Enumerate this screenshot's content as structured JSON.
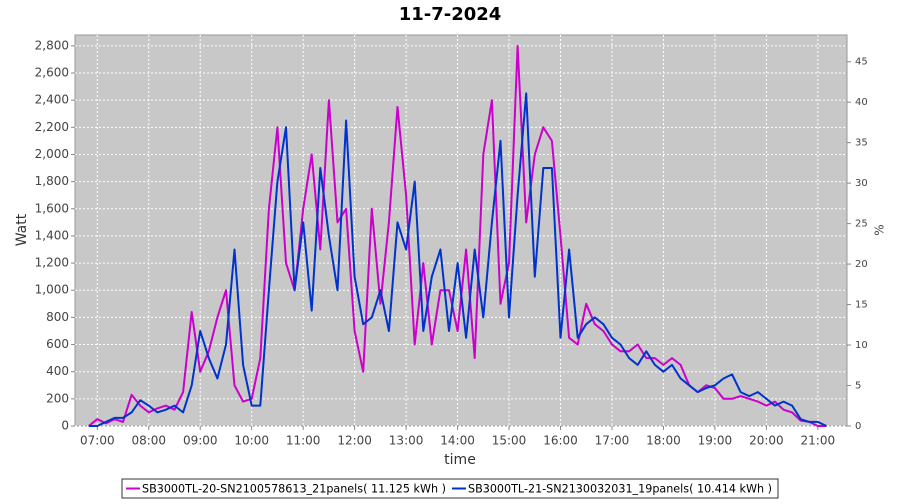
{
  "chart_data": {
    "type": "line",
    "title": "11-7-2024",
    "xlabel": "time",
    "ylabel": "Watt",
    "y2label": "%",
    "x": [
      410,
      420,
      430,
      440,
      450,
      460,
      470,
      480,
      490,
      500,
      510,
      520,
      530,
      540,
      550,
      560,
      570,
      580,
      590,
      600,
      610,
      620,
      630,
      640,
      650,
      660,
      670,
      680,
      690,
      700,
      710,
      720,
      730,
      740,
      750,
      760,
      770,
      780,
      790,
      800,
      810,
      820,
      830,
      840,
      850,
      860,
      870,
      880,
      890,
      900,
      910,
      920,
      930,
      940,
      950,
      960,
      970,
      980,
      990,
      1000,
      1010,
      1020,
      1030,
      1040,
      1050,
      1060,
      1070,
      1080,
      1090,
      1100,
      1110,
      1120,
      1130,
      1140,
      1150,
      1160,
      1170,
      1180,
      1190,
      1200,
      1210,
      1220,
      1230,
      1240,
      1250,
      1260,
      1270
    ],
    "series": [
      {
        "name": "SB3000TL-20-SN2100578613_21panels( 11.125 kWh )",
        "color": "#cc00cc",
        "values": [
          0,
          50,
          20,
          50,
          30,
          230,
          150,
          100,
          130,
          150,
          120,
          250,
          840,
          400,
          550,
          800,
          1000,
          300,
          180,
          200,
          500,
          1600,
          2200,
          1200,
          1000,
          1600,
          2000,
          1300,
          2400,
          1500,
          1600,
          700,
          400,
          1600,
          900,
          1500,
          2350,
          1700,
          600,
          1200,
          600,
          1000,
          1000,
          700,
          1300,
          500,
          2000,
          2400,
          900,
          1200,
          2800,
          1500,
          2000,
          2200,
          2100,
          1400,
          650,
          600,
          900,
          750,
          700,
          600,
          550,
          550,
          600,
          500,
          500,
          450,
          500,
          450,
          300,
          250,
          300,
          280,
          200,
          200,
          220,
          200,
          180,
          150,
          180,
          120,
          100,
          40,
          30,
          0,
          0
        ]
      },
      {
        "name": "SB3000TL-21-SN2130032031_19panels( 10.414 kWh )",
        "color": "#0033cc",
        "values": [
          0,
          0,
          30,
          60,
          60,
          100,
          190,
          150,
          100,
          120,
          150,
          100,
          300,
          700,
          500,
          350,
          600,
          1300,
          450,
          150,
          150,
          1000,
          1800,
          2200,
          1000,
          1500,
          850,
          1900,
          1400,
          1000,
          2250,
          1100,
          750,
          800,
          1000,
          700,
          1500,
          1300,
          1800,
          700,
          1100,
          1300,
          700,
          1200,
          650,
          1300,
          800,
          1500,
          2100,
          800,
          1700,
          2450,
          1100,
          1900,
          1900,
          650,
          1300,
          650,
          750,
          800,
          750,
          650,
          600,
          500,
          450,
          550,
          450,
          400,
          450,
          350,
          300,
          250,
          280,
          300,
          350,
          380,
          250,
          220,
          250,
          200,
          150,
          180,
          150,
          50,
          30,
          30,
          0
        ]
      }
    ],
    "xlim": [
      394,
      1294
    ],
    "xticks": [
      {
        "value": 420,
        "label": "07:00"
      },
      {
        "value": 480,
        "label": "08:00"
      },
      {
        "value": 540,
        "label": "09:00"
      },
      {
        "value": 600,
        "label": "10:00"
      },
      {
        "value": 660,
        "label": "11:00"
      },
      {
        "value": 720,
        "label": "12:00"
      },
      {
        "value": 780,
        "label": "13:00"
      },
      {
        "value": 840,
        "label": "14:00"
      },
      {
        "value": 900,
        "label": "15:00"
      },
      {
        "value": 960,
        "label": "16:00"
      },
      {
        "value": 1020,
        "label": "17:00"
      },
      {
        "value": 1080,
        "label": "18:00"
      },
      {
        "value": 1140,
        "label": "19:00"
      },
      {
        "value": 1200,
        "label": "20:00"
      },
      {
        "value": 1260,
        "label": "21:00"
      }
    ],
    "ylim": [
      0,
      2880
    ],
    "yticks": [
      0,
      200,
      400,
      600,
      800,
      {
        "value": 1000,
        "label": "1,000"
      },
      {
        "value": 1200,
        "label": "1,200"
      },
      {
        "value": 1400,
        "label": "1,400"
      },
      {
        "value": 1600,
        "label": "1,600"
      },
      {
        "value": 1800,
        "label": "1,800"
      },
      {
        "value": 2000,
        "label": "2,000"
      },
      {
        "value": 2200,
        "label": "2,200"
      },
      {
        "value": 2400,
        "label": "2,400"
      },
      {
        "value": 2600,
        "label": "2,600"
      },
      {
        "value": 2800,
        "label": "2,800"
      }
    ],
    "y2lim": [
      0,
      48.3
    ],
    "y2ticks": [
      0,
      5,
      10,
      15,
      20,
      25,
      30,
      35,
      40,
      45
    ],
    "grid": true,
    "legend": "bottom"
  }
}
